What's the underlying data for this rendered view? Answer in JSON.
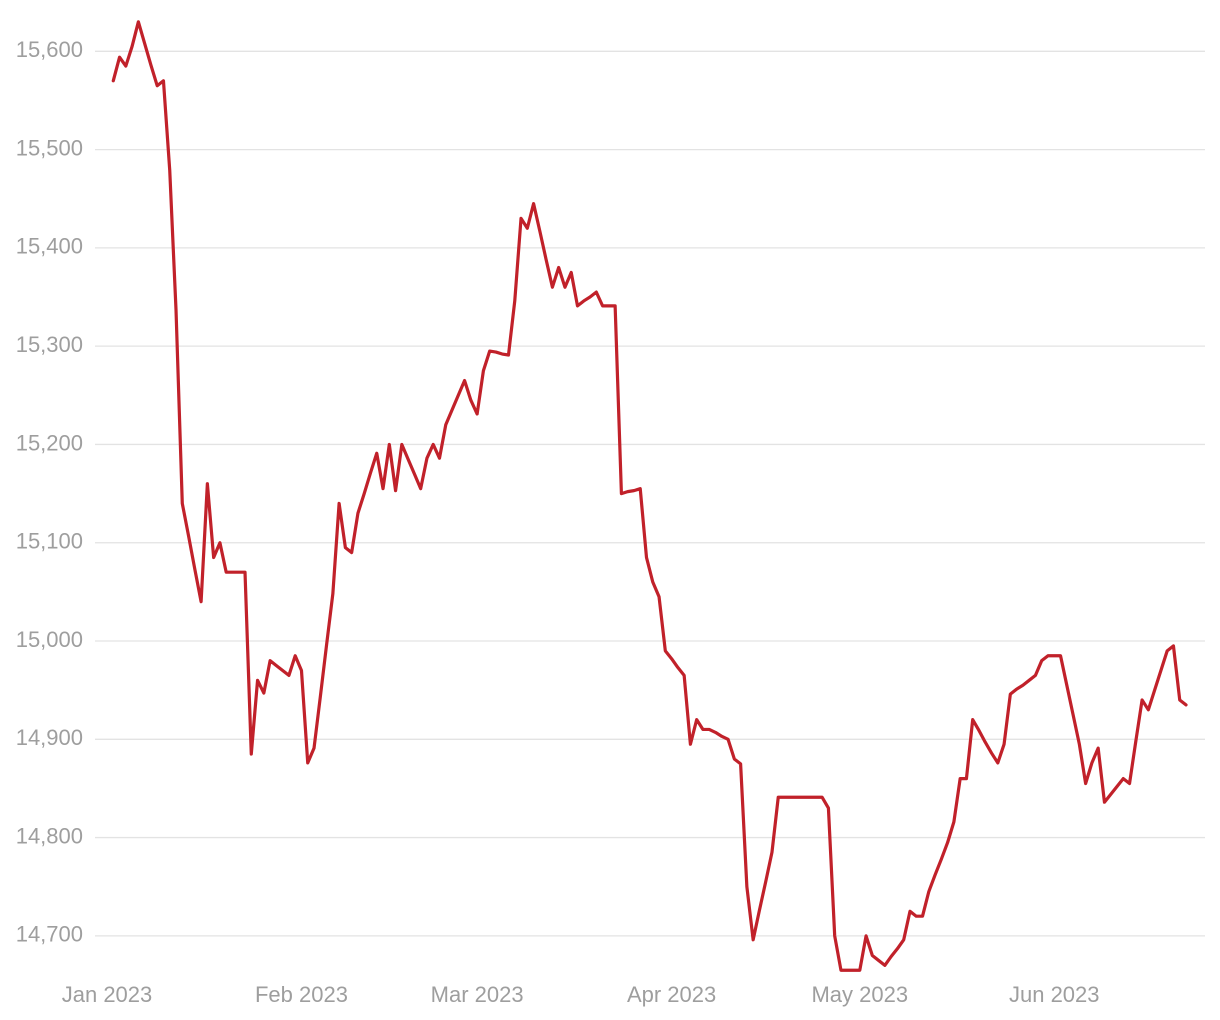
{
  "chart_data": {
    "type": "line",
    "categories": [
      "Jan 2023",
      null,
      null,
      null,
      null,
      null,
      null,
      null,
      null,
      null,
      null,
      null,
      null,
      null,
      null,
      null,
      null,
      null,
      null,
      null,
      null,
      null,
      null,
      null,
      null,
      null,
      null,
      null,
      null,
      null,
      null,
      "Feb 2023",
      null,
      null,
      null,
      null,
      null,
      null,
      null,
      null,
      null,
      null,
      null,
      null,
      null,
      null,
      null,
      null,
      null,
      null,
      null,
      null,
      null,
      null,
      null,
      null,
      null,
      null,
      null,
      "Mar 2023",
      null,
      null,
      null,
      null,
      null,
      null,
      null,
      null,
      null,
      null,
      null,
      null,
      null,
      null,
      null,
      null,
      null,
      null,
      null,
      null,
      null,
      null,
      null,
      null,
      null,
      null,
      null,
      null,
      null,
      null,
      "Apr 2023",
      null,
      null,
      null,
      null,
      null,
      null,
      null,
      null,
      null,
      null,
      null,
      null,
      null,
      null,
      null,
      null,
      null,
      null,
      null,
      null,
      null,
      null,
      null,
      null,
      null,
      null,
      null,
      null,
      null,
      "May 2023",
      null,
      null,
      null,
      null,
      null,
      null,
      null,
      null,
      null,
      null,
      null,
      null,
      null,
      null,
      null,
      null,
      null,
      null,
      null,
      null,
      null,
      null,
      null,
      null,
      null,
      null,
      null,
      null,
      null,
      null,
      "Jun 2023",
      null,
      null,
      null,
      null,
      null,
      null,
      null,
      null,
      null,
      null,
      null,
      null,
      null,
      null,
      null,
      null,
      null,
      null,
      null,
      null,
      null
    ],
    "values": [
      null,
      15570,
      15594,
      15585,
      15605,
      15630,
      15608,
      15586,
      15565,
      15570,
      15479,
      15337,
      15140,
      15107,
      15073,
      15040,
      15160,
      15085,
      15100,
      15070,
      15070,
      15070,
      15070,
      14885,
      14960,
      14947,
      14980,
      14975,
      14970,
      14965,
      14985,
      14970,
      14876,
      14891,
      14943,
      14996,
      15048,
      15140,
      15095,
      15090,
      15130,
      15150,
      15171,
      15191,
      15155,
      15200,
      15153,
      15200,
      15185,
      15170,
      15155,
      15186,
      15200,
      15186,
      15220,
      15235,
      15250,
      15265,
      15245,
      15231,
      15275,
      15295,
      15294,
      15292,
      15291,
      15346,
      15430,
      15420,
      15445,
      15417,
      15388,
      15360,
      15380,
      15360,
      15375,
      15341,
      15346,
      15350,
      15355,
      15341,
      15341,
      15341,
      15150,
      15152,
      15153,
      15155,
      15085,
      15060,
      15045,
      14990,
      14982,
      14973,
      14965,
      14895,
      14920,
      14910,
      14910,
      14907,
      14903,
      14900,
      14880,
      14875,
      14750,
      14696,
      14726,
      14755,
      14785,
      14841,
      14841,
      14841,
      14841,
      14841,
      14841,
      14841,
      14841,
      14830,
      14700,
      14665,
      14665,
      14665,
      14665,
      14700,
      14680,
      14675,
      14670,
      14679,
      14687,
      14696,
      14725,
      14720,
      14720,
      14745,
      14762,
      14778,
      14795,
      14816,
      14860,
      14860,
      14920,
      14909,
      14897,
      14886,
      14876,
      14895,
      14946,
      14951,
      14955,
      14960,
      14965,
      14980,
      14985,
      14985,
      14985,
      14955,
      14925,
      14895,
      14855,
      14876,
      14891,
      14836,
      14844,
      14852,
      14860,
      14855,
      14898,
      14940,
      14930,
      14950,
      14970,
      14990,
      14995,
      14940,
      14935
    ],
    "color": "#c1212a",
    "ylim": [
      14650,
      15640
    ],
    "yticks": [
      {
        "value": 14700,
        "label": "14,700"
      },
      {
        "value": 14800,
        "label": "14,800"
      },
      {
        "value": 14900,
        "label": "14,900"
      },
      {
        "value": 15000,
        "label": "15,000"
      },
      {
        "value": 15100,
        "label": "15,100"
      },
      {
        "value": 15200,
        "label": "15,200"
      },
      {
        "value": 15300,
        "label": "15,300"
      },
      {
        "value": 15400,
        "label": "15,400"
      },
      {
        "value": 15500,
        "label": "15,500"
      },
      {
        "value": 15600,
        "label": "15,600"
      }
    ],
    "grid": true
  }
}
